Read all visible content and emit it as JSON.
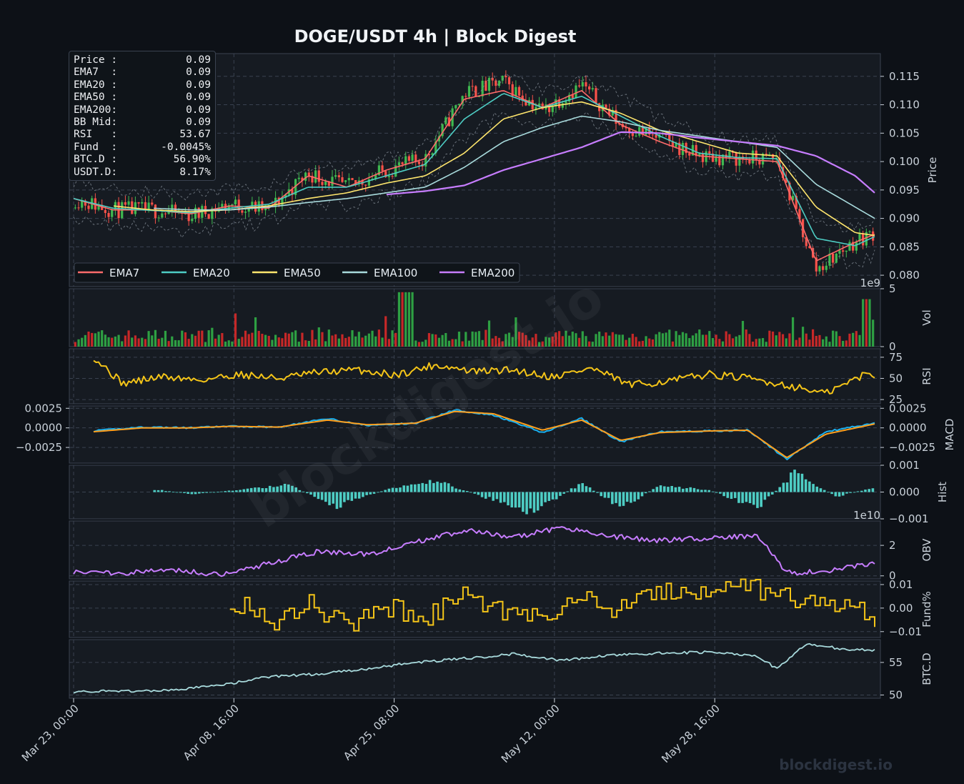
{
  "title": "DOGE/USDT  4h  |  Block Digest",
  "watermark": "blockdigest.io",
  "footer_brand": "blockdigest.io",
  "colors": {
    "background": "#0d1117",
    "panel": "#161b22",
    "grid": "#3a4250",
    "text": "#c9d1d9",
    "ema7": "#ff6b6b",
    "ema20": "#4ecdc4",
    "ema50": "#ffe66d",
    "ema100": "#a8dadc",
    "ema200": "#c77dff",
    "candle_up": "#3fb950",
    "candle_down": "#f85149",
    "rsi": "#f5c518",
    "macd": "#1ab0f0",
    "signal": "#ff9f1c",
    "hist": "#4ecdc4",
    "obv": "#c77dff",
    "funding": "#f5c518",
    "btcd": "#a8dadc"
  },
  "info_box": [
    {
      "key": "Price :",
      "value": "0.09"
    },
    {
      "key": "EMA7  :",
      "value": "0.09"
    },
    {
      "key": "EMA20 :",
      "value": "0.09"
    },
    {
      "key": "EMA50 :",
      "value": "0.09"
    },
    {
      "key": "EMA200:",
      "value": "0.09"
    },
    {
      "key": "BB Mid:",
      "value": "0.09"
    },
    {
      "key": "RSI   :",
      "value": "53.67"
    },
    {
      "key": "Fund  :",
      "value": "-0.0045%"
    },
    {
      "key": "BTC.D :",
      "value": "56.90%"
    },
    {
      "key": "USDT.D:",
      "value": "8.17%"
    }
  ],
  "x_ticks": [
    "Mar 23, 00:00",
    "Apr 08, 16:00",
    "Apr 25, 08:00",
    "May 12, 00:00",
    "May 28, 16:00"
  ],
  "chart_data": [
    {
      "type": "line",
      "panel": "Price",
      "ylabel": "Price",
      "ylim": [
        0.078,
        0.119
      ],
      "yticks": [
        "0.080",
        "0.085",
        "0.090",
        "0.095",
        "0.100",
        "0.105",
        "0.110",
        "0.115"
      ],
      "legend": [
        "EMA7",
        "EMA20",
        "EMA50",
        "EMA100",
        "EMA200"
      ],
      "legend_position": "bottom-left",
      "x": [
        "Mar 23",
        "Mar 27",
        "Mar 31",
        "Apr 04",
        "Apr 08",
        "Apr 12",
        "Apr 16",
        "Apr 20",
        "Apr 24",
        "Apr 28",
        "May 02",
        "May 06",
        "May 10",
        "May 14",
        "May 18",
        "May 22",
        "May 26",
        "May 30",
        "Jun 03",
        "Jun 07",
        "Jun 11",
        "Jun 13"
      ],
      "series": [
        {
          "name": "Price",
          "values": [
            0.0935,
            0.0915,
            0.0915,
            0.0905,
            0.0925,
            0.0915,
            0.098,
            0.0955,
            0.0985,
            0.1005,
            0.112,
            0.114,
            0.109,
            0.1135,
            0.1065,
            0.104,
            0.101,
            0.1005,
            0.1005,
            0.081,
            0.086,
            0.0875
          ]
        },
        {
          "name": "EMA7",
          "values": [
            0.0935,
            0.0915,
            0.0915,
            0.0908,
            0.0922,
            0.0918,
            0.0975,
            0.0955,
            0.0985,
            0.1005,
            0.111,
            0.1125,
            0.1095,
            0.1125,
            0.1065,
            0.1035,
            0.101,
            0.1005,
            0.1,
            0.0825,
            0.0858,
            0.0872
          ]
        },
        {
          "name": "EMA20",
          "values": [
            0.0935,
            0.0918,
            0.0914,
            0.091,
            0.0918,
            0.0925,
            0.0955,
            0.0955,
            0.0975,
            0.0995,
            0.1075,
            0.112,
            0.1095,
            0.1115,
            0.108,
            0.1045,
            0.1015,
            0.1007,
            0.1005,
            0.0865,
            0.0852,
            0.0868
          ]
        },
        {
          "name": "EMA50",
          "values": [
            null,
            0.0922,
            0.0915,
            0.0912,
            0.0915,
            0.0922,
            0.0935,
            0.0945,
            0.0962,
            0.0975,
            0.1015,
            0.1075,
            0.1095,
            0.1105,
            0.1085,
            0.1055,
            0.1035,
            0.1015,
            0.101,
            0.092,
            0.0875,
            0.087
          ]
        },
        {
          "name": "EMA100",
          "values": [
            null,
            null,
            0.0918,
            0.0915,
            0.0915,
            0.092,
            0.0928,
            0.0935,
            0.0945,
            0.0955,
            0.099,
            0.1035,
            0.106,
            0.108,
            0.107,
            0.1055,
            0.1045,
            0.1035,
            0.1025,
            0.096,
            0.092,
            0.09
          ]
        },
        {
          "name": "EMA200",
          "values": [
            null,
            null,
            null,
            null,
            null,
            null,
            null,
            null,
            0.0942,
            0.0948,
            0.0958,
            0.0985,
            0.1005,
            0.1025,
            0.1052,
            0.105,
            0.1042,
            0.1035,
            0.1028,
            0.101,
            0.0975,
            0.0945
          ]
        }
      ]
    },
    {
      "type": "bar",
      "panel": "Vol",
      "ylabel": "Vol",
      "ylim": [
        0,
        5
      ],
      "yticks": [
        "0",
        "5"
      ],
      "scale_label": "1e9",
      "note": "volume bars colored by candle direction; peaks near 5e9 around Apr 26 and Jun 12"
    },
    {
      "type": "line",
      "panel": "RSI",
      "ylabel": "RSI",
      "ylim": [
        20,
        85
      ],
      "yticks": [
        "25",
        "50",
        "75"
      ],
      "x": [
        "Mar 25",
        "Mar 28",
        "Apr 01",
        "Apr 05",
        "Apr 09",
        "Apr 13",
        "Apr 17",
        "Apr 21",
        "Apr 25",
        "Apr 29",
        "May 03",
        "May 07",
        "May 11",
        "May 15",
        "May 19",
        "May 23",
        "May 27",
        "May 31",
        "Jun 04",
        "Jun 08",
        "Jun 12",
        "Jun 13"
      ],
      "values": [
        76,
        44,
        52,
        48,
        55,
        50,
        57,
        60,
        54,
        66,
        58,
        60,
        52,
        62,
        42,
        47,
        55,
        50,
        42,
        32,
        55,
        53.67
      ]
    },
    {
      "type": "line",
      "panel": "MACD",
      "ylabel": "MACD",
      "ylim": [
        -0.0045,
        0.0028
      ],
      "yticks": [
        "0.0025",
        "0.0000",
        "−0.0025"
      ],
      "x": [
        "Mar 25",
        "Mar 30",
        "Apr 04",
        "Apr 08",
        "Apr 13",
        "Apr 18",
        "Apr 22",
        "Apr 27",
        "May 01",
        "May 05",
        "May 10",
        "May 14",
        "May 18",
        "May 22",
        "May 27",
        "May 31",
        "Jun 04",
        "Jun 08",
        "Jun 13"
      ],
      "series": [
        {
          "name": "MACD",
          "values": [
            -0.0004,
            0.0001,
            0.0,
            0.0002,
            0.0001,
            0.0012,
            0.0003,
            0.0006,
            0.0023,
            0.0016,
            -0.0006,
            0.0012,
            -0.0018,
            -0.0005,
            -0.0004,
            -0.0003,
            -0.004,
            -0.0005,
            0.0006
          ]
        },
        {
          "name": "Signal",
          "values": [
            -0.0005,
            0.0,
            0.0,
            0.0002,
            0.0001,
            0.001,
            0.0004,
            0.0006,
            0.0021,
            0.0018,
            -0.0003,
            0.001,
            -0.0016,
            -0.0006,
            -0.0004,
            -0.0003,
            -0.0038,
            -0.0008,
            0.0005
          ]
        }
      ]
    },
    {
      "type": "bar",
      "panel": "Hist",
      "ylabel": "Hist",
      "ylim": [
        -0.001,
        0.001
      ],
      "yticks": [
        "0.001",
        "0.000",
        "−0.001"
      ],
      "x": [
        "Mar 25",
        "Mar 30",
        "Apr 04",
        "Apr 09",
        "Apr 14",
        "Apr 19",
        "Apr 24",
        "Apr 29",
        "May 04",
        "May 09",
        "May 14",
        "May 18",
        "May 22",
        "May 27",
        "Jun 01",
        "Jun 05",
        "Jun 09",
        "Jun 13"
      ],
      "values": [
        0.0001,
        0.0002,
        -0.0001,
        0.0001,
        0.0003,
        -0.0006,
        0.0001,
        0.0005,
        -0.0002,
        -0.0009,
        0.0004,
        -0.0007,
        0.0003,
        0.0001,
        -0.0007,
        0.0009,
        -0.0002,
        0.0002
      ]
    },
    {
      "type": "line",
      "panel": "OBV",
      "ylabel": "OBV",
      "ylim": [
        -0.2,
        3.6
      ],
      "yticks": [
        "0",
        "2"
      ],
      "scale_label": "1e10",
      "x": [
        "Mar 23",
        "Mar 28",
        "Apr 02",
        "Apr 07",
        "Apr 12",
        "Apr 17",
        "Apr 22",
        "Apr 27",
        "May 02",
        "May 07",
        "May 12",
        "May 17",
        "May 22",
        "May 27",
        "Jun 01",
        "Jun 04",
        "Jun 08",
        "Jun 13"
      ],
      "values": [
        0.3,
        0.2,
        0.4,
        0.1,
        0.8,
        1.6,
        1.4,
        2.2,
        3.0,
        2.5,
        3.2,
        2.6,
        2.3,
        2.5,
        2.6,
        0.2,
        0.3,
        0.8
      ]
    },
    {
      "type": "line",
      "panel": "Fund%",
      "ylabel": "Fund%",
      "ylim": [
        -0.0125,
        0.0115
      ],
      "yticks": [
        "0.01",
        "0.00",
        "−0.01"
      ],
      "x": [
        "Apr 08",
        "Apr 12",
        "Apr 16",
        "Apr 20",
        "Apr 24",
        "Apr 28",
        "May 02",
        "May 06",
        "May 10",
        "May 14",
        "May 18",
        "May 22",
        "May 26",
        "May 30",
        "Jun 03",
        "Jun 07",
        "Jun 11",
        "Jun 13"
      ],
      "values": [
        0.004,
        -0.006,
        0.002,
        -0.008,
        0.001,
        -0.004,
        0.005,
        -0.002,
        -0.003,
        0.004,
        -0.001,
        0.006,
        0.008,
        0.009,
        0.007,
        0.0,
        0.003,
        -0.0045
      ]
    },
    {
      "type": "line",
      "panel": "BTC.D",
      "ylabel": "BTC.D",
      "ylim": [
        49.5,
        58.5
      ],
      "yticks": [
        "50",
        "55"
      ],
      "x": [
        "Mar 23",
        "Mar 28",
        "Apr 02",
        "Apr 07",
        "Apr 12",
        "Apr 17",
        "Apr 22",
        "Apr 27",
        "May 02",
        "May 07",
        "May 12",
        "May 17",
        "May 22",
        "May 27",
        "Jun 01",
        "Jun 03",
        "Jun 06",
        "Jun 10",
        "Jun 13"
      ],
      "values": [
        50.5,
        50.6,
        50.7,
        51.5,
        52.8,
        53.2,
        54.0,
        55.0,
        55.6,
        56.3,
        55.3,
        56.1,
        56.4,
        56.6,
        56.0,
        54.0,
        57.9,
        57.0,
        56.9
      ]
    }
  ]
}
